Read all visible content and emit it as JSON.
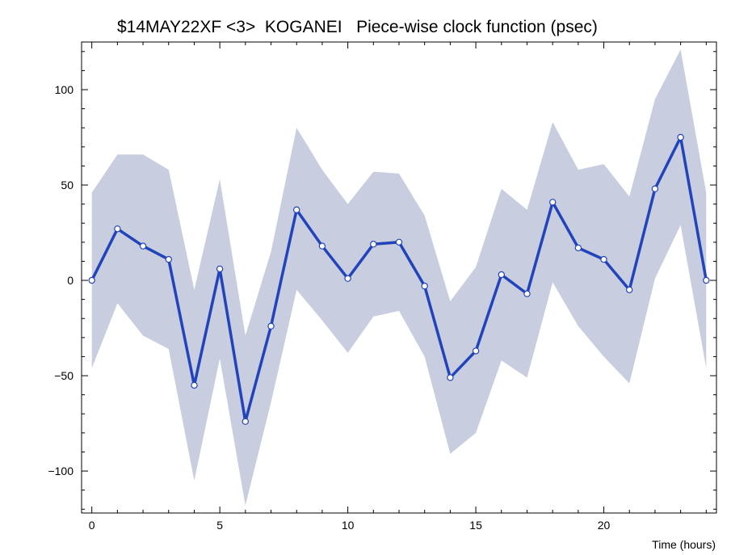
{
  "chart_data": {
    "type": "line",
    "title": "$14MAY22XF <3>  KOGANEI   Piece-wise clock function (psec)",
    "xlabel": "Time (hours)",
    "ylabel": "",
    "xlim": [
      -0.4,
      24.4
    ],
    "ylim": [
      -122,
      125
    ],
    "xticks": [
      0,
      5,
      10,
      15,
      20
    ],
    "xtick_labels": [
      "0",
      "5",
      "10",
      "15",
      "20"
    ],
    "yticks": [
      -100,
      -50,
      0,
      50,
      100
    ],
    "ytick_labels": [
      "−100",
      "−50",
      "0",
      "50",
      "100"
    ],
    "grid": false,
    "x": [
      0,
      1,
      2,
      3,
      4,
      5,
      6,
      7,
      8,
      9,
      10,
      11,
      12,
      13,
      14,
      15,
      16,
      17,
      18,
      19,
      20,
      21,
      22,
      23,
      24
    ],
    "series": [
      {
        "values": [
          0,
          27,
          18,
          11,
          -55,
          6,
          -74,
          -24,
          37,
          18,
          1,
          19,
          20,
          -3,
          -51,
          -37,
          3,
          -7,
          41,
          17,
          11,
          -5,
          48,
          75,
          0
        ],
        "band_upper": [
          46,
          66,
          66,
          58,
          -5,
          53,
          -29,
          15,
          80,
          58,
          40,
          57,
          56,
          34,
          -11,
          7,
          48,
          37,
          83,
          58,
          61,
          44,
          95,
          121,
          46
        ],
        "band_lower": [
          -46,
          -12,
          -29,
          -36,
          -105,
          -41,
          -118,
          -64,
          -5,
          -21,
          -38,
          -19,
          -16,
          -40,
          -91,
          -80,
          -42,
          -51,
          -1,
          -24,
          -40,
          -54,
          1,
          29,
          -46
        ],
        "line_color": "#2244bb",
        "band_color": "#c8cddf"
      }
    ]
  }
}
